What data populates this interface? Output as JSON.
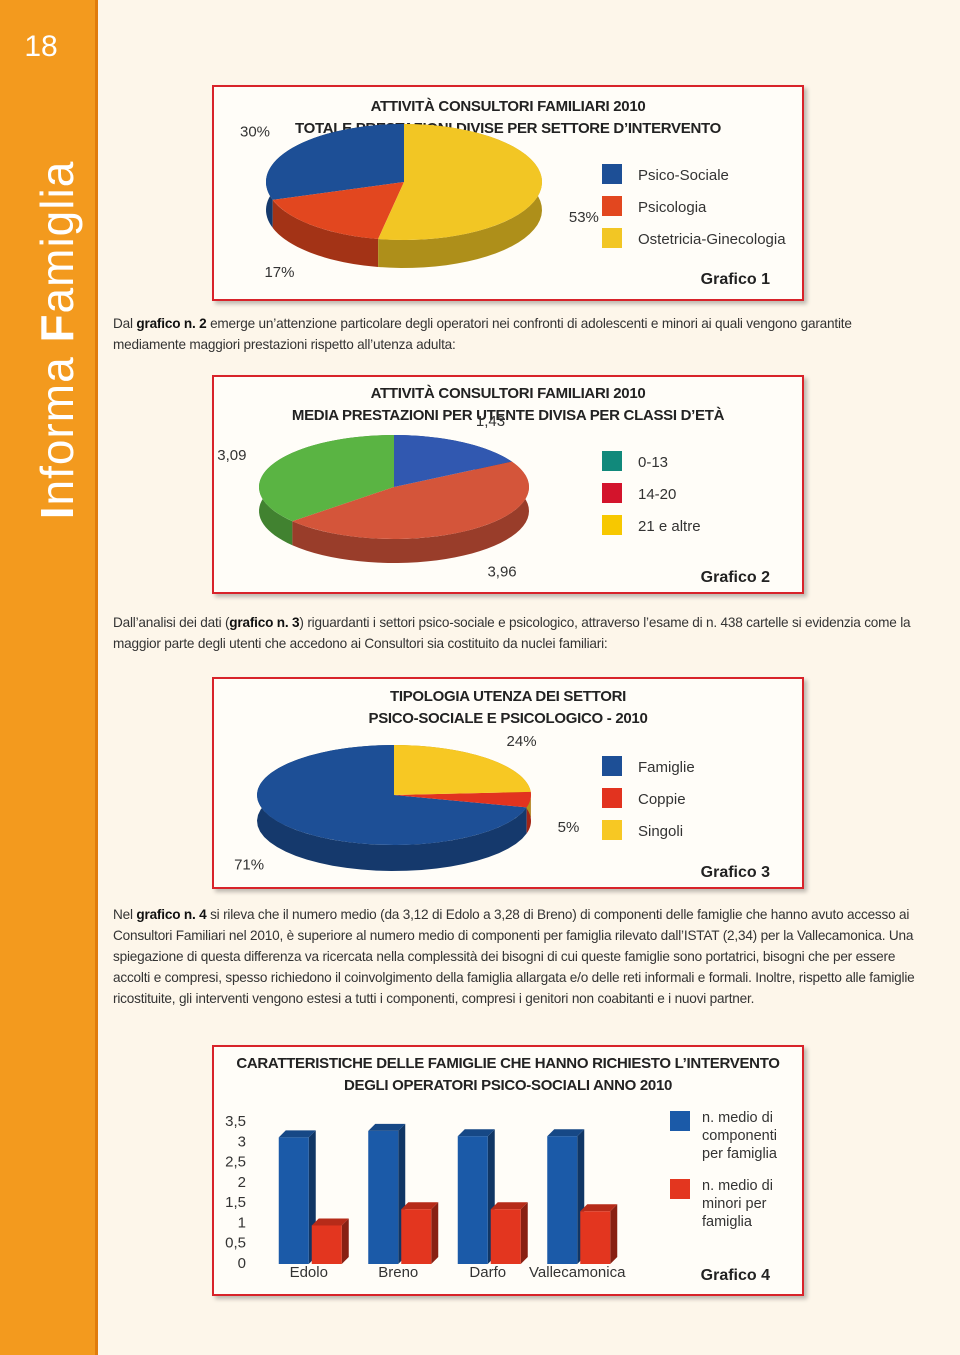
{
  "sidebar": {
    "page_number": "18",
    "title_runs": [
      {
        "text": "I",
        "bold": true
      },
      {
        "text": "nforma ",
        "bold": false
      },
      {
        "text": "F",
        "bold": true
      },
      {
        "text": "amiglia",
        "bold": false
      }
    ]
  },
  "paragraphs": [
    {
      "runs": [
        {
          "text": "Dal ",
          "bold": false
        },
        {
          "text": "grafico n. 2",
          "bold": true
        },
        {
          "text": " emerge un’attenzione particolare degli operatori nei confronti di adolescenti e minori ai quali vengono garantite mediamente maggiori prestazioni rispetto all’utenza adulta:",
          "bold": false
        }
      ]
    },
    {
      "runs": [
        {
          "text": "Dall’analisi dei dati (",
          "bold": false
        },
        {
          "text": "grafico n. 3",
          "bold": true
        },
        {
          "text": ") riguardanti i settori psico-sociale e psicologico, attraverso l’esame di n. 438 cartelle si evidenzia come la maggior parte degli utenti che accedono ai Consultori sia costituito da nuclei familiari:",
          "bold": false
        }
      ]
    },
    {
      "runs": [
        {
          "text": "Nel ",
          "bold": false
        },
        {
          "text": "grafico n. 4",
          "bold": true
        },
        {
          "text": " si rileva che il numero medio (da 3,12 di Edolo a 3,28 di Breno) di componenti delle famiglie che hanno avuto accesso ai Consultori Familiari nel 2010, è superiore al numero medio di componenti per famiglia rilevato dall’ISTAT (2,34) per la Vallecamonica. Una spiegazione di questa differenza va ricercata nella complessità dei bisogni di cui queste famiglie sono portatrici, bisogni che per essere accolti e compresi, spesso richiedono il coinvolgimento della famiglia allargata e/o delle reti informali e formali. Inoltre, rispetto alle famiglie ricostituite, gli interventi vengono estesi a tutti i componenti, compresi i genitori non coabitanti e i nuovi partner.",
          "bold": false
        }
      ]
    }
  ],
  "chart_data": [
    {
      "type": "pie",
      "title": [
        "ATTIVITÀ CONSULTORI FAMILIARI 2010",
        "TOTALE PRESTAZIONI DIVISE PER SETTORE D’INTERVENTO"
      ],
      "categories": [
        "Psico-Sociale",
        "Psicologia",
        "Ostetricia-Ginecologia"
      ],
      "values": [
        30,
        17,
        53
      ],
      "value_labels": [
        "30%",
        "17%",
        "53%"
      ],
      "colors": [
        "#1d4f96",
        "#e2471f",
        "#f2c624"
      ],
      "caption": "Grafico 1"
    },
    {
      "type": "pie",
      "title": [
        "ATTIVITÀ CONSULTORI FAMILIARI 2010",
        "MEDIA PRESTAZIONI PER UTENTE DIVISA PER CLASSI D’ETÀ"
      ],
      "categories": [
        "0-13",
        "14-20",
        "21 e altre"
      ],
      "values": [
        3.09,
        3.96,
        1.43
      ],
      "value_labels": [
        "3,09",
        "3,96",
        "1,43"
      ],
      "colors": [
        "#5ab443",
        "#d4553a",
        "#3158b0"
      ],
      "legend_colors": [
        "#11897b",
        "#d3142c",
        "#f7c800"
      ],
      "caption": "Grafico 2"
    },
    {
      "type": "pie",
      "title": [
        "TIPOLOGIA UTENZA DEI SETTORI",
        "PSICO-SOCIALE E PSICOLOGICO - 2010"
      ],
      "categories": [
        "Famiglie",
        "Coppie",
        "Singoli"
      ],
      "values": [
        71,
        5,
        24
      ],
      "value_labels": [
        "71%",
        "5%",
        "24%"
      ],
      "colors": [
        "#1d4f96",
        "#e2331f",
        "#f7c823"
      ],
      "caption": "Grafico 3"
    },
    {
      "type": "bar",
      "title": [
        "CARATTERISTICHE DELLE FAMIGLIE CHE HANNO RICHIESTO L’INTERVENTO",
        "DEGLI OPERATORI PSICO-SOCIALI ANNO 2010"
      ],
      "categories": [
        "Edolo",
        "Breno",
        "Darfo",
        "Vallecamonica"
      ],
      "series": [
        {
          "name": "n. medio di componenti per famiglia",
          "color": "#1b5aa8",
          "values": [
            3.12,
            3.28,
            3.15,
            3.15
          ]
        },
        {
          "name": "n. medio di minori per famiglia",
          "color": "#e3361f",
          "values": [
            0.95,
            1.35,
            1.35,
            1.3
          ]
        }
      ],
      "ylim": [
        0,
        3.5
      ],
      "yticks": [
        {
          "value": 3.5,
          "label": "3,5"
        },
        3,
        {
          "value": 2.5,
          "label": "2,5"
        },
        2,
        {
          "value": 1.5,
          "label": "1,5"
        },
        1,
        {
          "value": 0.5,
          "label": "0,5"
        },
        0
      ],
      "grid": false,
      "caption": "Grafico 4"
    }
  ]
}
